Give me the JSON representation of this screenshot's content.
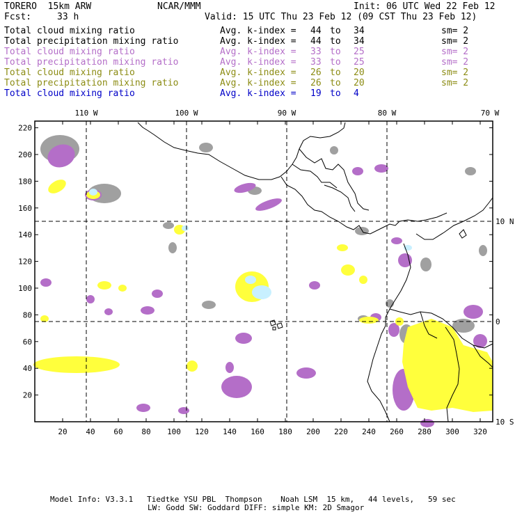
{
  "header": {
    "model": "TORERO  15km ARW",
    "org": "NCAR/MMM",
    "init": "Init: 06 UTC Wed 22 Feb 12",
    "fcst_label": "Fcst:",
    "fcst_value": "33 h",
    "valid": "Valid: 15 UTC Thu 23 Feb 12 (09 CST Thu 23 Feb 12)"
  },
  "legend": [
    {
      "field": "Total cloud mixing ratio",
      "index": "Avg. k-index =",
      "from": "44",
      "to_word": "to",
      "to": "34",
      "sm": "sm= 2",
      "color": "#000000"
    },
    {
      "field": "Total precipitation mixing ratio",
      "index": "Avg. k-index =",
      "from": "44",
      "to_word": "to",
      "to": "34",
      "sm": "sm= 2",
      "color": "#000000"
    },
    {
      "field": "Total cloud mixing ratio",
      "index": "Avg. k-index =",
      "from": "33",
      "to_word": "to",
      "to": "25",
      "sm": "sm= 2",
      "color": "#b46ec8"
    },
    {
      "field": "Total precipitation mixing ratio",
      "index": "Avg. k-index =",
      "from": "33",
      "to_word": "to",
      "to": "25",
      "sm": "sm= 2",
      "color": "#b46ec8"
    },
    {
      "field": "Total cloud mixing ratio",
      "index": "Avg. k-index =",
      "from": "26",
      "to_word": "to",
      "to": "20",
      "sm": "sm= 2",
      "color": "#8c8c14"
    },
    {
      "field": "Total precipitation mixing ratio",
      "index": "Avg. k-index =",
      "from": "26",
      "to_word": "to",
      "to": "20",
      "sm": "sm= 2",
      "color": "#8c8c14"
    },
    {
      "field": "Total cloud mixing ratio",
      "index": "Avg. k-index =",
      "from": "19",
      "to_word": "to",
      "to": "4",
      "sm": "",
      "color": "#0000c8"
    }
  ],
  "map": {
    "lon_labels": [
      "110 W",
      "100 W",
      "90 W",
      "80 W",
      "70 W"
    ],
    "lat_labels": [
      "10 N",
      "0",
      "10 S"
    ],
    "y_ticks": [
      "20",
      "40",
      "60",
      "80",
      "100",
      "120",
      "140",
      "160",
      "180",
      "200",
      "220"
    ],
    "x_ticks": [
      "20",
      "40",
      "60",
      "80",
      "100",
      "120",
      "140",
      "160",
      "180",
      "200",
      "220",
      "240",
      "260",
      "280",
      "300",
      "320"
    ],
    "colors": {
      "gray": "#a0a0a0",
      "purple": "#b46ec8",
      "yellow": "#ffff3c",
      "cyan": "#c8f0ff",
      "coast": "#000000"
    }
  },
  "footer": {
    "line1": "Model Info: V3.3.1   Tiedtke YSU PBL  Thompson    Noah LSM  15 km,   44 levels,   59 sec",
    "line2": "LW: Godd SW: Goddard DIFF: simple KM: 2D Smagor"
  }
}
